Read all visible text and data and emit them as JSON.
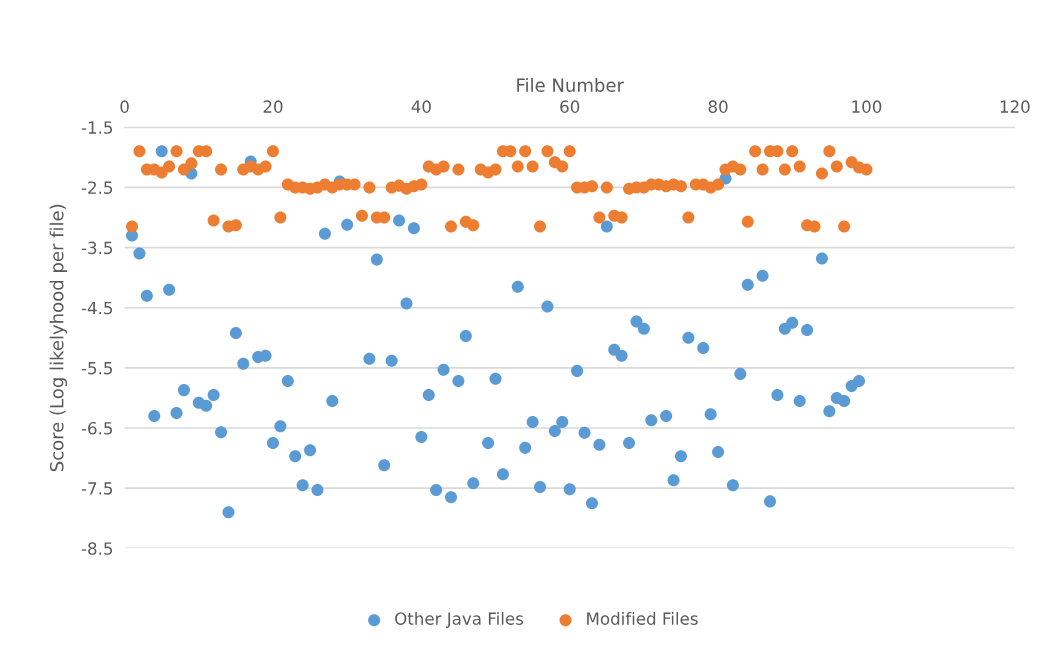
{
  "chart_data": {
    "type": "scatter",
    "xlabel": "File Number",
    "ylabel": "Score (Log likelyhood per file)",
    "x": [
      1,
      2,
      3,
      4,
      5,
      6,
      7,
      8,
      9,
      10,
      11,
      12,
      13,
      14,
      15,
      16,
      17,
      18,
      19,
      20,
      21,
      22,
      23,
      24,
      25,
      26,
      27,
      28,
      29,
      30,
      31,
      32,
      33,
      34,
      35,
      36,
      37,
      38,
      39,
      40,
      41,
      42,
      43,
      44,
      45,
      46,
      47,
      48,
      49,
      50,
      51,
      52,
      53,
      54,
      55,
      56,
      57,
      58,
      59,
      60,
      61,
      62,
      63,
      64,
      65,
      66,
      67,
      68,
      69,
      70,
      71,
      72,
      73,
      74,
      75,
      76,
      77,
      78,
      79,
      80,
      81,
      82,
      83,
      84,
      85,
      86,
      87,
      88,
      89,
      90,
      91,
      92,
      93,
      94,
      95,
      96,
      97,
      98,
      99,
      100
    ],
    "series": [
      {
        "name": "Other Java Files",
        "color": "#5b9bd5",
        "values": [
          -3.3,
          -3.6,
          -4.3,
          -6.3,
          -1.9,
          -4.2,
          -6.25,
          -5.87,
          -2.27,
          -6.08,
          -6.13,
          -5.95,
          -6.57,
          -7.9,
          -4.92,
          -5.43,
          -2.07,
          -5.32,
          -5.3,
          -6.75,
          -6.47,
          -5.72,
          -6.97,
          -7.45,
          -6.87,
          -7.53,
          -3.27,
          -6.05,
          -2.4,
          -3.12,
          null,
          null,
          -5.35,
          -3.7,
          -7.12,
          -5.38,
          -3.05,
          -4.43,
          -3.18,
          -6.65,
          -5.95,
          -7.53,
          -5.53,
          -7.65,
          -5.72,
          -4.97,
          -7.42,
          null,
          -6.75,
          -5.68,
          -7.27,
          null,
          -4.15,
          -6.83,
          -6.4,
          -7.48,
          -4.48,
          -6.55,
          -6.4,
          -7.52,
          -5.55,
          -6.58,
          -7.75,
          -6.78,
          -3.15,
          -5.2,
          -5.3,
          -6.75,
          -4.73,
          -4.85,
          -6.37,
          null,
          -6.3,
          -7.37,
          -6.97,
          -5.0,
          null,
          -5.17,
          -6.27,
          -6.9,
          -2.35,
          -7.45,
          -5.6,
          -4.12,
          null,
          -3.97,
          -7.72,
          -5.95,
          -4.85,
          -4.75,
          -6.05,
          -4.87,
          null,
          -3.68,
          -6.22,
          -6.0,
          -6.05,
          -5.8,
          -5.72,
          null
        ]
      },
      {
        "name": "Modified Files",
        "color": "#ed7d31",
        "values": [
          -3.15,
          -1.9,
          -2.2,
          -2.2,
          -2.25,
          -2.15,
          -1.9,
          -2.2,
          -2.1,
          -1.9,
          -1.9,
          -3.05,
          -2.2,
          -3.15,
          -3.13,
          -2.2,
          -2.15,
          -2.2,
          -2.15,
          -1.9,
          -3.0,
          -2.45,
          -2.5,
          -2.5,
          -2.52,
          -2.5,
          -2.45,
          -2.5,
          -2.45,
          -2.45,
          -2.45,
          -2.97,
          -2.5,
          -3.0,
          -3.0,
          -2.5,
          -2.47,
          -2.52,
          -2.48,
          -2.45,
          -2.15,
          -2.2,
          -2.15,
          -3.15,
          -2.2,
          -3.07,
          -3.13,
          -2.2,
          -2.25,
          -2.2,
          -1.9,
          -1.9,
          -2.15,
          -1.9,
          -2.15,
          -3.15,
          -1.9,
          -2.08,
          -2.15,
          -1.9,
          -2.5,
          -2.5,
          -2.48,
          -3.0,
          -2.5,
          -2.97,
          -3.0,
          -2.52,
          -2.5,
          -2.5,
          -2.45,
          -2.45,
          -2.48,
          -2.45,
          -2.48,
          -3.0,
          -2.45,
          -2.45,
          -2.5,
          -2.45,
          -2.2,
          -2.15,
          -2.2,
          -3.07,
          -1.9,
          -2.2,
          -1.9,
          -1.9,
          -2.2,
          -1.9,
          -2.15,
          -3.13,
          -3.15,
          -2.27,
          -1.9,
          -2.15,
          -3.15,
          -2.08,
          -2.17,
          -2.2
        ]
      }
    ],
    "xlim": [
      0,
      120
    ],
    "xticks": [
      0,
      20,
      40,
      60,
      80,
      100,
      120
    ],
    "ylim": [
      -8.5,
      -1.5
    ],
    "yticks": [
      -1.5,
      -2.5,
      -3.5,
      -4.5,
      -5.5,
      -6.5,
      -7.5,
      -8.5
    ],
    "grid": "y",
    "legend": "bottom",
    "marker": "circle"
  }
}
